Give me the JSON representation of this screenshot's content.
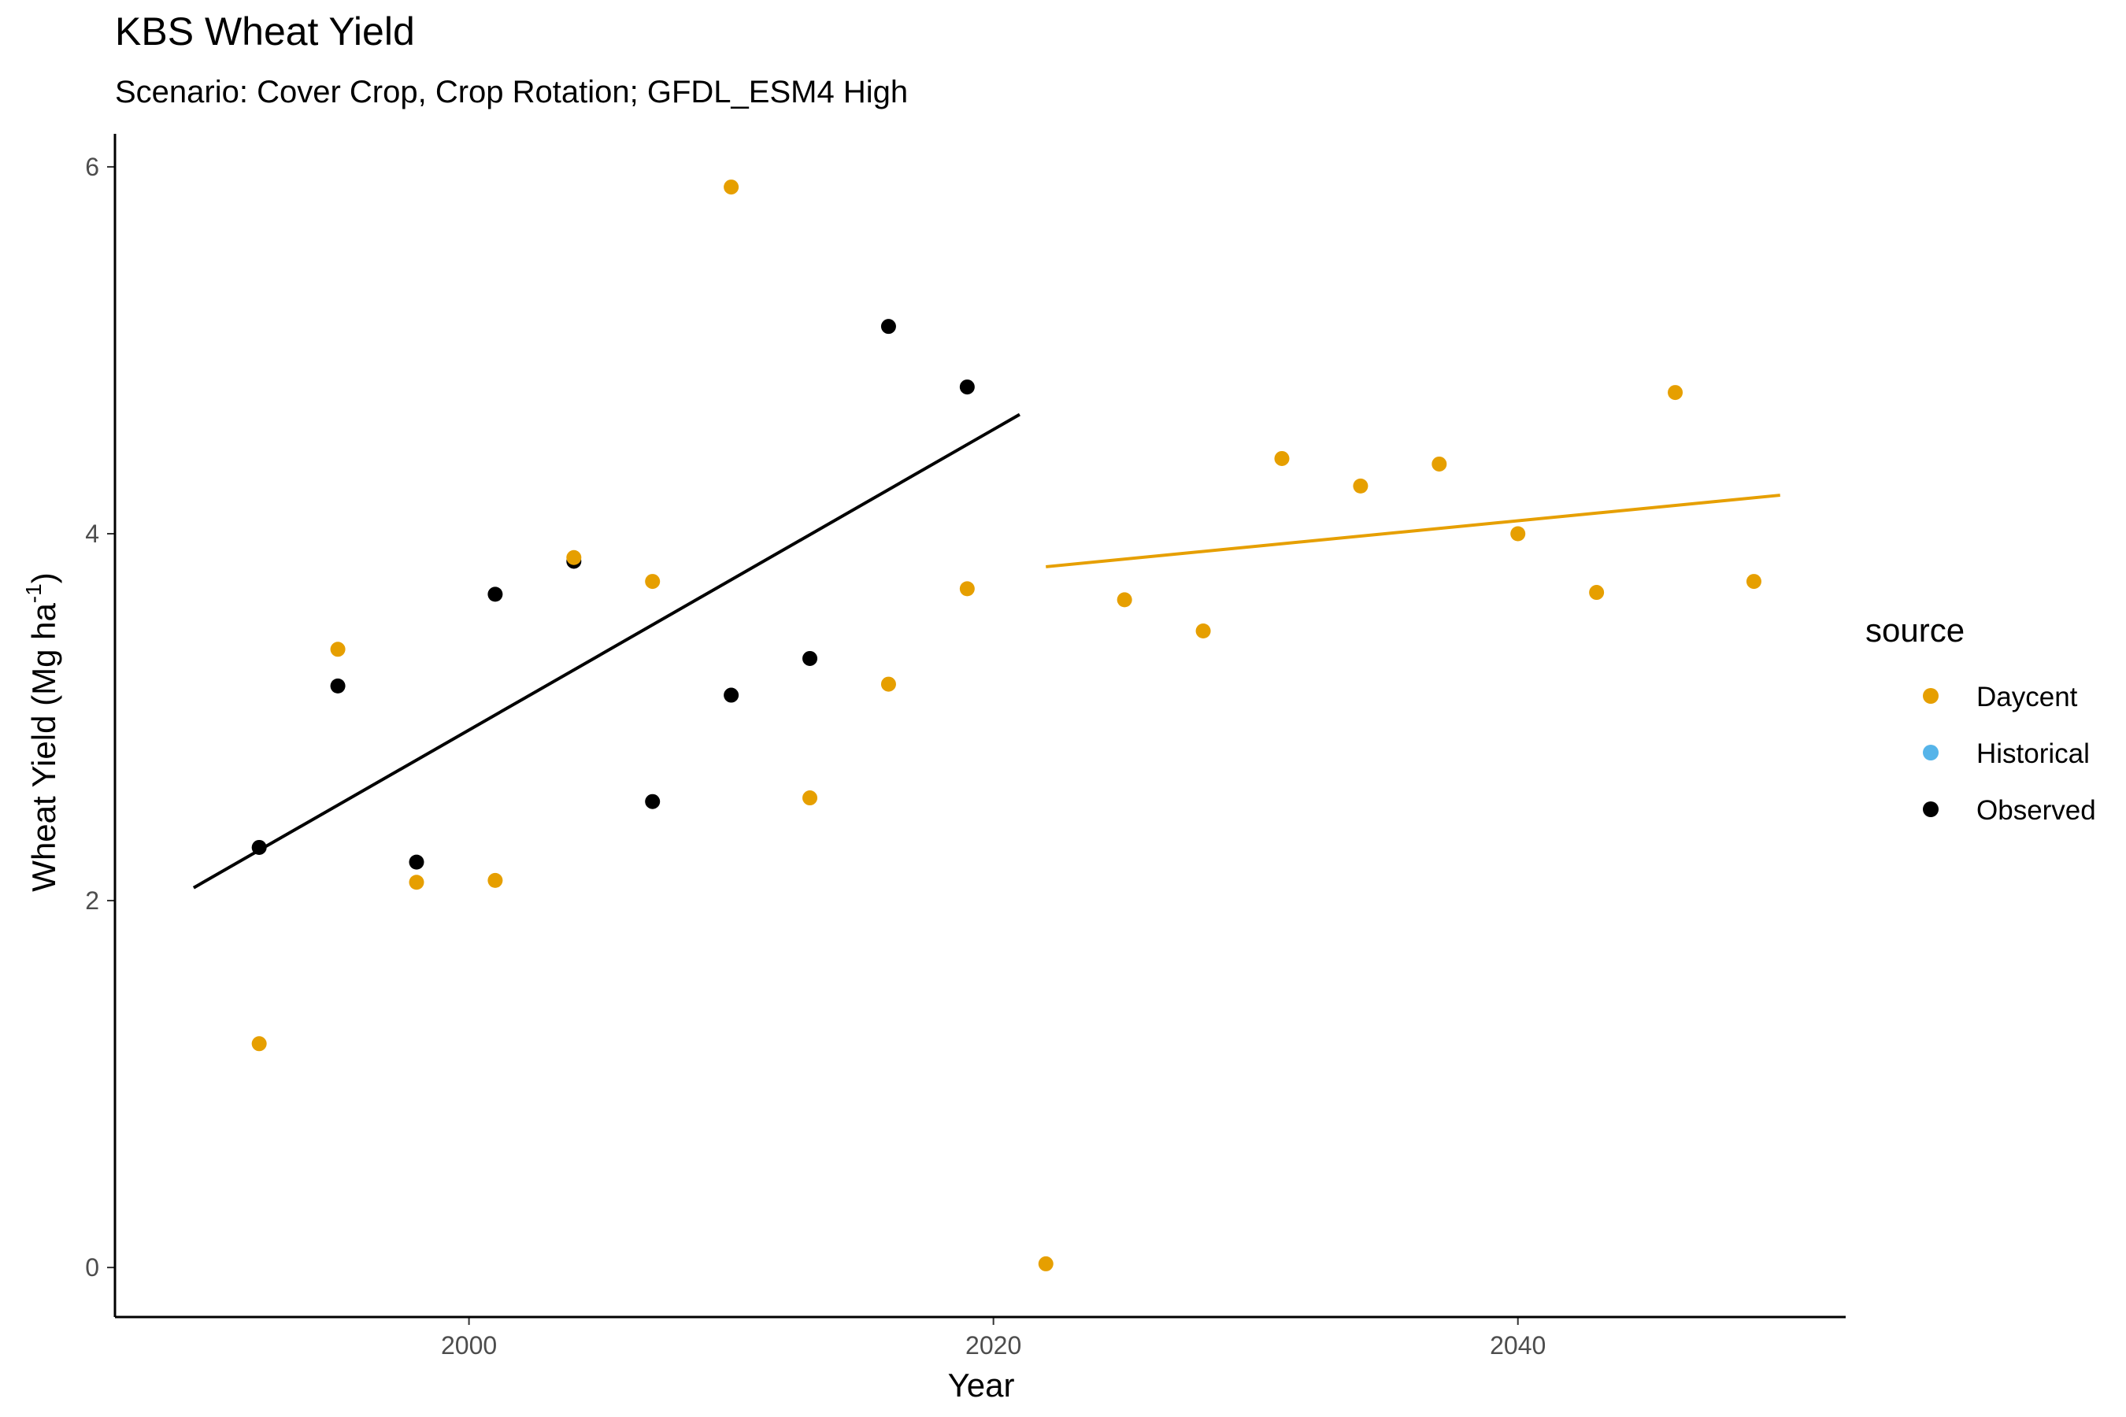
{
  "chart_data": {
    "type": "scatter",
    "title": "KBS Wheat Yield",
    "subtitle": "Scenario: Cover Crop, Crop Rotation; GFDL_ESM4 High",
    "xlabel": "Year",
    "ylabel": "Wheat Yield (Mg ha",
    "ylabel_sup": "-1",
    "ylabel_close": ")",
    "xlim": [
      1986.5,
      2052.5
    ],
    "ylim": [
      -0.27,
      6.18
    ],
    "x_ticks": [
      2000,
      2020,
      2040
    ],
    "y_ticks": [
      0,
      2,
      4,
      6
    ],
    "legend": {
      "title": "source",
      "position": "right",
      "items": [
        {
          "name": "Daycent",
          "color": "#E69F00"
        },
        {
          "name": "Historical",
          "color": "#56B4E9"
        },
        {
          "name": "Observed",
          "color": "#000000"
        }
      ]
    },
    "series": [
      {
        "name": "Observed",
        "color": "#000000",
        "points": [
          {
            "x": 1992,
            "y": 2.29
          },
          {
            "x": 1995,
            "y": 3.17
          },
          {
            "x": 1998,
            "y": 2.21
          },
          {
            "x": 2001,
            "y": 3.67
          },
          {
            "x": 2004,
            "y": 3.85
          },
          {
            "x": 2007,
            "y": 2.54
          },
          {
            "x": 2010,
            "y": 3.12
          },
          {
            "x": 2013,
            "y": 3.32
          },
          {
            "x": 2016,
            "y": 5.13
          },
          {
            "x": 2019,
            "y": 4.8
          }
        ]
      },
      {
        "name": "Daycent",
        "color": "#E69F00",
        "points": [
          {
            "x": 1992,
            "y": 1.22
          },
          {
            "x": 1995,
            "y": 3.37
          },
          {
            "x": 1998,
            "y": 2.1
          },
          {
            "x": 2001,
            "y": 2.11
          },
          {
            "x": 2004,
            "y": 3.87
          },
          {
            "x": 2007,
            "y": 3.74
          },
          {
            "x": 2010,
            "y": 5.89
          },
          {
            "x": 2013,
            "y": 2.56
          },
          {
            "x": 2016,
            "y": 3.18
          },
          {
            "x": 2019,
            "y": 3.7
          },
          {
            "x": 2022,
            "y": 0.02
          },
          {
            "x": 2025,
            "y": 3.64
          },
          {
            "x": 2028,
            "y": 3.47
          },
          {
            "x": 2031,
            "y": 4.41
          },
          {
            "x": 2034,
            "y": 4.26
          },
          {
            "x": 2037,
            "y": 4.38
          },
          {
            "x": 2040,
            "y": 4.0
          },
          {
            "x": 2043,
            "y": 3.68
          },
          {
            "x": 2046,
            "y": 4.77
          },
          {
            "x": 2049,
            "y": 3.74
          }
        ]
      }
    ],
    "trend_lines": [
      {
        "name": "Observed",
        "color": "#000000",
        "x": [
          1989.5,
          2021
        ],
        "y": [
          2.07,
          4.65
        ]
      },
      {
        "name": "Daycent",
        "color": "#E69F00",
        "x": [
          2022,
          2050
        ],
        "y": [
          3.82,
          4.21
        ]
      }
    ]
  }
}
